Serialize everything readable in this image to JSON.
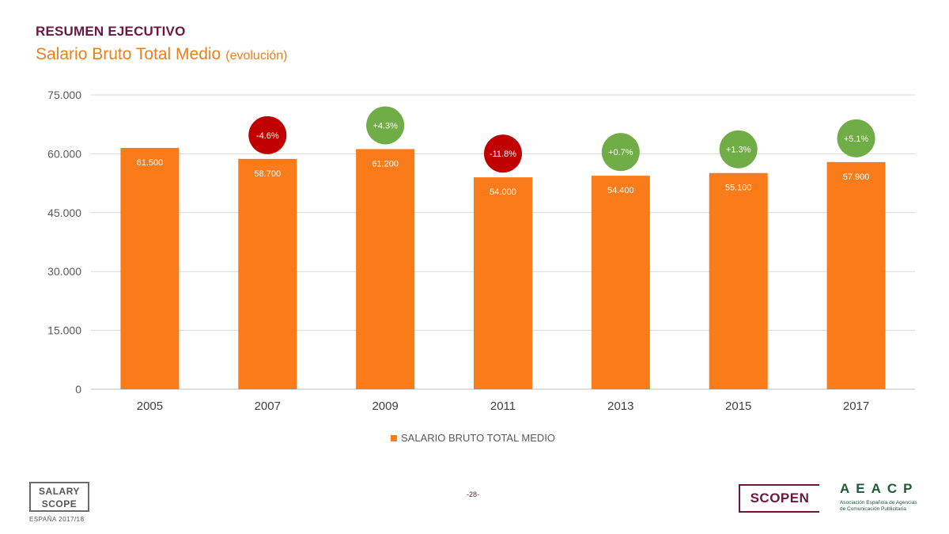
{
  "header": {
    "section": "RESUMEN EJECUTIVO",
    "title": "Salario Bruto Total Medio",
    "subtitle": "(evolución)"
  },
  "chart_data": {
    "type": "bar",
    "categories": [
      "2005",
      "2007",
      "2009",
      "2011",
      "2013",
      "2015",
      "2017"
    ],
    "series": [
      {
        "name": "SALARIO BRUTO TOTAL MEDIO",
        "values": [
          61500,
          58700,
          61200,
          54000,
          54400,
          55100,
          57900
        ],
        "value_labels": [
          "61.500",
          "58.700",
          "61.200",
          "54.000",
          "54.400",
          "55.100",
          "57.900"
        ],
        "color": "#f97b1a"
      }
    ],
    "change_bubbles": [
      null,
      {
        "label": "-4.6%",
        "sign": "negative"
      },
      {
        "label": "+4.3%",
        "sign": "positive"
      },
      {
        "label": "-11.8%",
        "sign": "negative"
      },
      {
        "label": "+0.7%",
        "sign": "positive"
      },
      {
        "label": "+1.3%",
        "sign": "positive"
      },
      {
        "label": "+5.1%",
        "sign": "positive"
      }
    ],
    "yticks": [
      0,
      15000,
      30000,
      45000,
      60000,
      75000
    ],
    "ytick_labels": [
      "0",
      "15.000",
      "30.000",
      "45.000",
      "60.000",
      "75.000"
    ],
    "ylim": [
      0,
      75000
    ],
    "grid": true,
    "legend_position": "bottom-center",
    "colors": {
      "positive": "#70ad47",
      "negative": "#c00000",
      "bar": "#f97b1a"
    }
  },
  "legend": {
    "label": "SALARIO BRUTO TOTAL MEDIO"
  },
  "footer": {
    "page_number": "-28-",
    "salary_scope_line1": "SALARY",
    "salary_scope_line2": "SCOPE",
    "salary_scope_edition": "ESPAÑA 2017/18",
    "scopen": "SCOPEN",
    "aeacp": "AEACP",
    "aeacp_tagline": "Asociación Española de Agencias de Comunicación Publicitaria"
  }
}
